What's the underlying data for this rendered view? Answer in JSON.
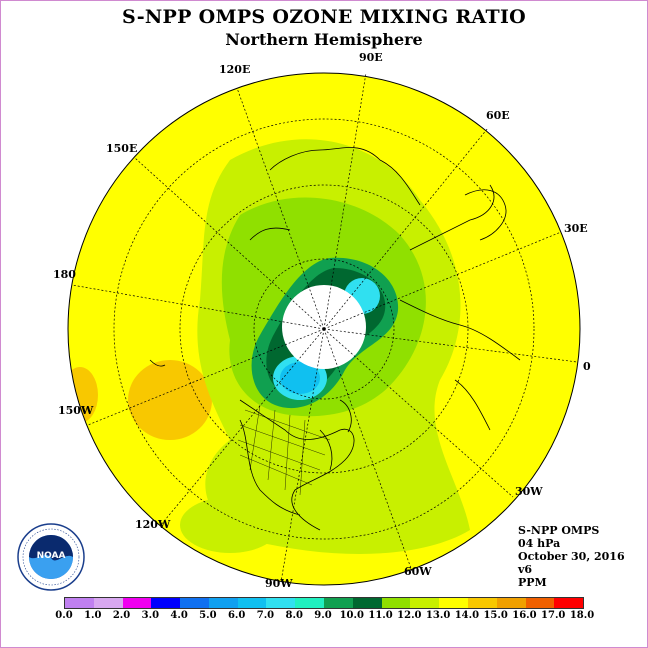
{
  "title": "S-NPP OMPS OZONE MIXING RATIO",
  "subtitle": "Northern Hemisphere",
  "longitude_labels": [
    "90E",
    "60E",
    "30E",
    "0",
    "30W",
    "60W",
    "90W",
    "120W",
    "150W",
    "180",
    "150E",
    "120E"
  ],
  "info": {
    "instrument": "S-NPP OMPS",
    "level": "04 hPa",
    "date": "October 30, 2016",
    "version": "v6",
    "units": "PPM"
  },
  "colorbar": {
    "ticks": [
      "0.0",
      "1.0",
      "2.0",
      "3.0",
      "4.0",
      "5.0",
      "6.0",
      "7.0",
      "8.0",
      "9.0",
      "10.0",
      "11.0",
      "12.0",
      "13.0",
      "14.0",
      "15.0",
      "16.0",
      "17.0",
      "18.0"
    ],
    "colors": [
      "#c080f0",
      "#d8a8f0",
      "#f000f0",
      "#0000ff",
      "#1070f0",
      "#10a0f0",
      "#10c0f0",
      "#30e0f0",
      "#20f0c0",
      "#10a050",
      "#006830",
      "#90e000",
      "#c8f000",
      "#ffff00",
      "#f8c800",
      "#f0a000",
      "#f06000",
      "#ff0000",
      "#a06040"
    ]
  },
  "logo": {
    "name": "NOAA",
    "ring_text": "NATIONAL OCEANIC AND ATMOSPHERIC ADMINISTRATION · U.S. DEPARTMENT OF COMMERCE"
  }
}
